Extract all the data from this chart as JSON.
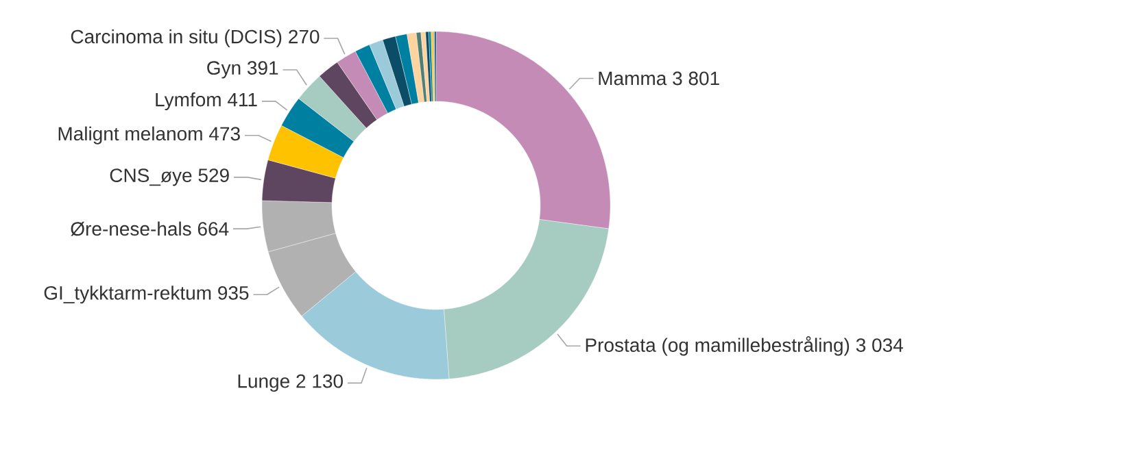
{
  "chart_data": {
    "type": "donut",
    "categories": [
      "Mamma",
      "Prostata (og mamillebestråling)",
      "Lunge",
      "GI_tykktarm-rektum",
      "Øre-nese-hals",
      "CNS_øye",
      "Malignt melanom",
      "Lymfom",
      "Gyn",
      null,
      "Carcinoma in situ (DCIS)",
      null,
      null,
      null,
      null,
      null,
      null,
      null,
      null,
      null,
      null,
      null,
      null
    ],
    "values": [
      3801,
      3034,
      2130,
      935,
      664,
      529,
      473,
      411,
      391,
      290,
      270,
      200,
      180,
      170,
      150,
      120,
      60,
      60,
      40,
      30,
      25,
      20,
      20
    ],
    "value_labels": [
      "3 801",
      "3 034",
      "2 130",
      "935",
      "664",
      "529",
      "473",
      "411",
      "391",
      null,
      "270",
      null,
      null,
      null,
      null,
      null,
      null,
      null,
      null,
      null,
      null,
      null,
      null
    ],
    "colors": [
      "#c38bb5",
      "#a6cbc0",
      "#9bcbdb",
      "#b1b1b1",
      "#b1b1b1",
      "#5f4660",
      "#fec200",
      "#0080a1",
      "#a6cbc0",
      "#5f4660",
      "#c38bb5",
      "#0080a1",
      "#9bcbdb",
      "#0b4d66",
      "#0080a1",
      "#fdd3a0",
      "#4f7f73",
      "#fdd3a0",
      "#0b4d66",
      "#0080a1",
      "#fec200",
      "#b1b1b1",
      "#0b4d66"
    ]
  }
}
